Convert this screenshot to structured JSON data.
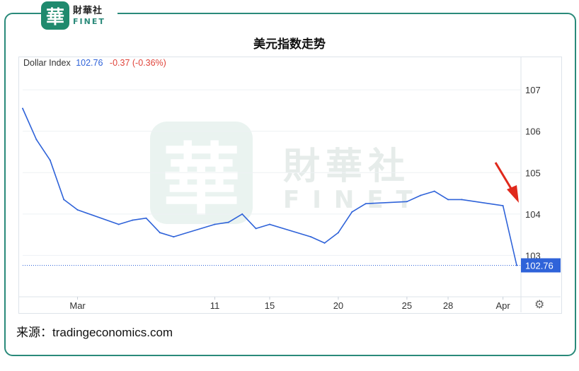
{
  "brand": {
    "logo_char": "華",
    "name_cn": "財華社",
    "name_en": "FINET"
  },
  "title": "美元指数走势",
  "legend": {
    "name": "Dollar Index",
    "value": "102.76",
    "change": "-0.37 (-0.36%)"
  },
  "current_value_label": "102.76",
  "source": "来源：tradingeconomics.com",
  "icons": {
    "settings": "gear-icon",
    "arrow": "red-arrow-pointer"
  },
  "colors": {
    "line": "#2f63d9",
    "accent": "#2a8a7a",
    "arrow": "#e0291c",
    "last_value_box": "#2f63d9"
  },
  "chart_data": {
    "type": "line",
    "series": [
      {
        "name": "Dollar Index",
        "x": [
          "2024-02-26",
          "2024-02-27",
          "2024-02-28",
          "2024-02-29",
          "2024-03-01",
          "2024-03-04",
          "2024-03-05",
          "2024-03-06",
          "2024-03-07",
          "2024-03-08",
          "2024-03-11",
          "2024-03-12",
          "2024-03-13",
          "2024-03-14",
          "2024-03-15",
          "2024-03-18",
          "2024-03-19",
          "2024-03-20",
          "2024-03-21",
          "2024-03-22",
          "2024-03-25",
          "2024-03-26",
          "2024-03-27",
          "2024-03-28",
          "2024-03-29",
          "2024-04-01",
          "2024-04-02"
        ],
        "values": [
          106.55,
          105.8,
          105.3,
          104.35,
          104.1,
          103.75,
          103.85,
          103.9,
          103.55,
          103.45,
          103.75,
          103.8,
          104.0,
          103.65,
          103.75,
          103.45,
          103.3,
          103.55,
          104.05,
          104.25,
          104.3,
          104.45,
          104.55,
          104.35,
          104.35,
          104.2,
          102.76
        ]
      }
    ],
    "x_tick_labels": [
      "Mar",
      "11",
      "15",
      "20",
      "25",
      "28",
      "Apr"
    ],
    "x_tick_dates": [
      "2024-03-01",
      "2024-03-11",
      "2024-03-15",
      "2024-03-20",
      "2024-03-25",
      "2024-03-28",
      "2024-04-01"
    ],
    "y_tick_labels": [
      "103",
      "104",
      "105",
      "106",
      "107"
    ],
    "ylim": [
      102.0,
      107.6
    ],
    "grid": true,
    "last_value": 102.76
  }
}
